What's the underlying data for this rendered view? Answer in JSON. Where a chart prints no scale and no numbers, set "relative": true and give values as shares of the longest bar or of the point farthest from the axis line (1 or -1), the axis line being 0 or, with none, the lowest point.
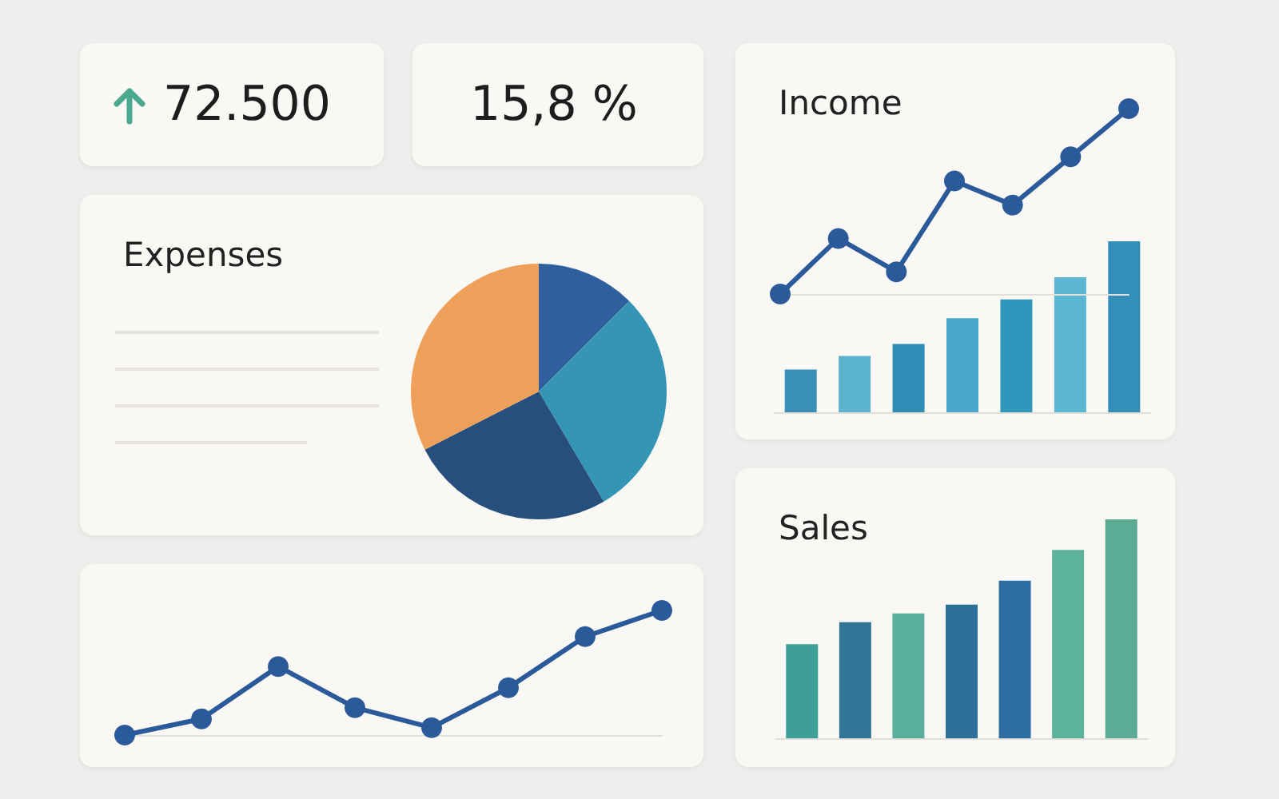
{
  "chart_data": [
    {
      "type": "other",
      "title": "72.500"
    },
    {
      "type": "other",
      "title": "15,8 %"
    },
    {
      "type": "pie",
      "title": "Expenses",
      "categories": [
        null,
        null,
        null,
        null
      ],
      "values": [
        12.5,
        29,
        26,
        32.5
      ],
      "colors": [
        "#2f5f9c",
        "#3595b4",
        "#264f7d",
        "#eea05a"
      ]
    },
    {
      "type": "line",
      "categories": [
        null,
        null,
        null,
        null,
        null,
        null,
        null,
        null
      ],
      "relative": true,
      "marker": "circle",
      "color": "#2b5a9a",
      "values": [
        0,
        0.13,
        0.55,
        0.22,
        0.06,
        0.38,
        0.79,
        1
      ]
    },
    {
      "type": "bar",
      "title": "Income",
      "categories": [
        null,
        null,
        null,
        null,
        null,
        null,
        null
      ],
      "relative": true,
      "colors": [
        "#3a8fb8",
        "#5bb3cf",
        "#2e8cb5",
        "#4aa7c9",
        "#2f97bb",
        "#5ab6d3",
        "#338fb8"
      ],
      "values": [
        0.25,
        0.33,
        0.4,
        0.55,
        0.66,
        0.79,
        1
      ]
    },
    {
      "type": "line",
      "categories": [
        null,
        null,
        null,
        null,
        null,
        null,
        null
      ],
      "relative": true,
      "marker": "circle",
      "color": "#2b5a9a",
      "values": [
        0,
        0.3,
        0.12,
        0.61,
        0.48,
        0.74,
        1
      ]
    },
    {
      "type": "bar",
      "title": "Sales",
      "categories": [
        null,
        null,
        null,
        null,
        null,
        null,
        null
      ],
      "relative": true,
      "colors": [
        "#3d9f98",
        "#2e7596",
        "#5aae9c",
        "#2c6f98",
        "#2e6da3",
        "#5cb39c",
        "#5aac94"
      ],
      "values": [
        0.43,
        0.53,
        0.57,
        0.61,
        0.72,
        0.86,
        1
      ]
    }
  ]
}
